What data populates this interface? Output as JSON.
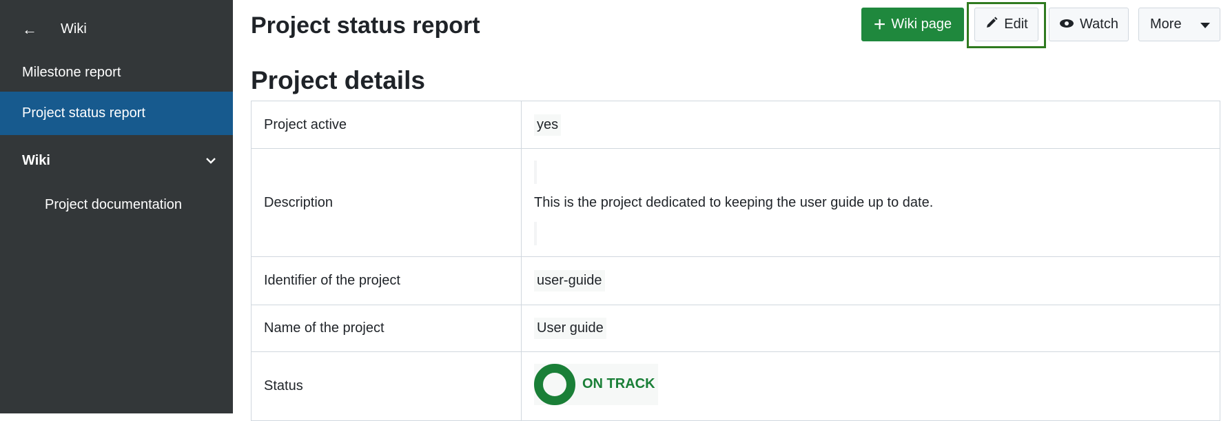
{
  "sidebar": {
    "back_label": "Wiki",
    "items": [
      {
        "label": "Milestone report",
        "active": false
      },
      {
        "label": "Project status report",
        "active": true
      },
      {
        "label": "Wiki",
        "expanded": true
      },
      {
        "label": "Project documentation"
      }
    ]
  },
  "header": {
    "title": "Project status report",
    "buttons": {
      "wiki_page": "Wiki page",
      "edit": "Edit",
      "watch": "Watch",
      "more": "More"
    }
  },
  "section_title": "Project details",
  "details": [
    {
      "key": "Project active",
      "value": "yes"
    },
    {
      "key": "Description",
      "value": "This is the project dedicated to keeping the user guide up to date."
    },
    {
      "key": "Identifier of the project",
      "value": "user-guide"
    },
    {
      "key": "Name of the project",
      "value": "User guide"
    },
    {
      "key": "Status",
      "value": "ON TRACK"
    }
  ],
  "colors": {
    "sidebar": "#333739",
    "active": "#175a8e",
    "primary": "#1f883d",
    "status_on_track": "#1a7f37"
  }
}
